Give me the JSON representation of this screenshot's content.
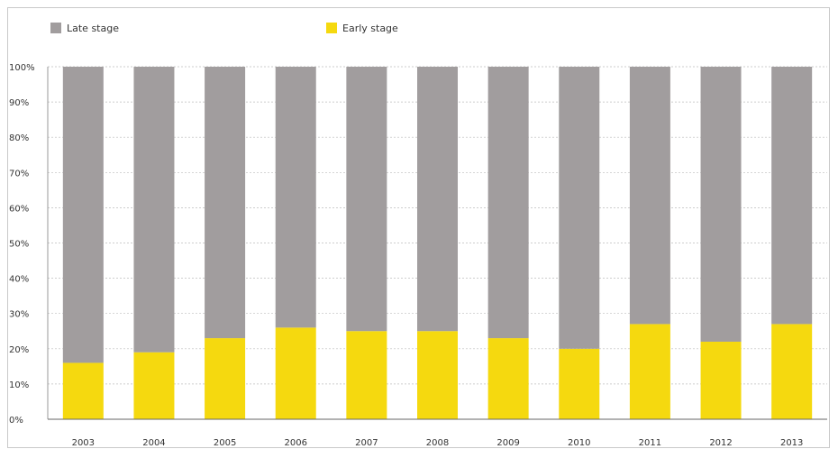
{
  "chart_data": {
    "type": "bar",
    "stacked": true,
    "categories": [
      "2003",
      "2004",
      "2005",
      "2006",
      "2007",
      "2008",
      "2009",
      "2010",
      "2011",
      "2012",
      "2013"
    ],
    "series": [
      {
        "name": "Early stage",
        "color": "#f5d90f",
        "values": [
          16,
          19,
          23,
          26,
          25,
          25,
          23,
          20,
          27,
          22,
          27
        ]
      },
      {
        "name": "Late stage",
        "color": "#a19d9e",
        "values": [
          84,
          81,
          77,
          74,
          75,
          75,
          77,
          80,
          73,
          78,
          73
        ]
      }
    ],
    "legend": {
      "placement": "top-left",
      "items": [
        {
          "label": "Late stage",
          "color": "#a19d9e"
        },
        {
          "label": "Early stage",
          "color": "#f5d90f"
        }
      ]
    },
    "yticks": [
      "0%",
      "10%",
      "20%",
      "30%",
      "40%",
      "50%",
      "60%",
      "70%",
      "80%",
      "90%",
      "100%"
    ],
    "ylim": [
      0,
      100
    ],
    "grid": true,
    "title": "",
    "xlabel": "",
    "ylabel": ""
  }
}
